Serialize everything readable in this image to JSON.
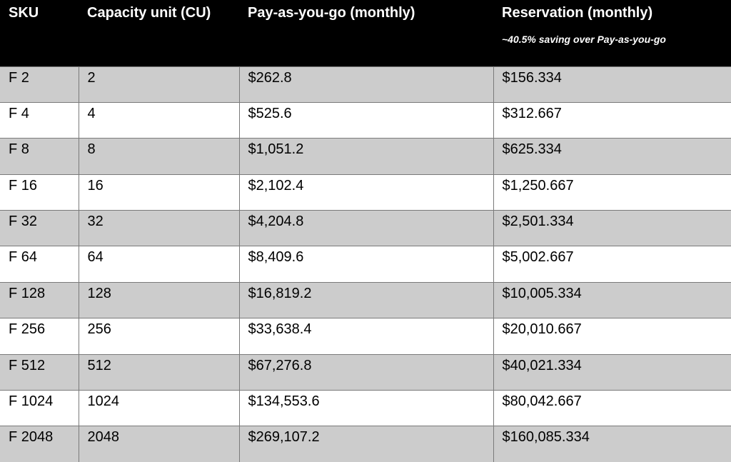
{
  "table": {
    "headers": [
      {
        "label": "SKU"
      },
      {
        "label": "Capacity unit (CU)"
      },
      {
        "label": "Pay-as-you-go (monthly)"
      },
      {
        "label": "Reservation (monthly)",
        "note": "~40.5% saving over Pay-as-you-go"
      }
    ],
    "rows": [
      [
        "F 2",
        "2",
        "$262.8",
        "$156.334"
      ],
      [
        "F 4",
        "4",
        "$525.6",
        "$312.667"
      ],
      [
        "F 8",
        "8",
        "$1,051.2",
        "$625.334"
      ],
      [
        "F 16",
        "16",
        "$2,102.4",
        "$1,250.667"
      ],
      [
        "F 32",
        "32",
        "$4,204.8",
        "$2,501.334"
      ],
      [
        "F 64",
        "64",
        "$8,409.6",
        "$5,002.667"
      ],
      [
        "F 128",
        "128",
        "$16,819.2",
        "$10,005.334"
      ],
      [
        "F 256",
        "256",
        "$33,638.4",
        "$20,010.667"
      ],
      [
        "F 512",
        "512",
        "$67,276.8",
        "$40,021.334"
      ],
      [
        "F 1024",
        "1024",
        "$134,553.6",
        "$80,042.667"
      ],
      [
        "F 2048",
        "2048",
        "$269,107.2",
        "$160,085.334"
      ]
    ]
  },
  "colors": {
    "header_bg": "#000000",
    "header_text": "#ffffff",
    "shaded_row": "#cccccc",
    "plain_row": "#ffffff",
    "grid_line": "#7a7a7a"
  }
}
